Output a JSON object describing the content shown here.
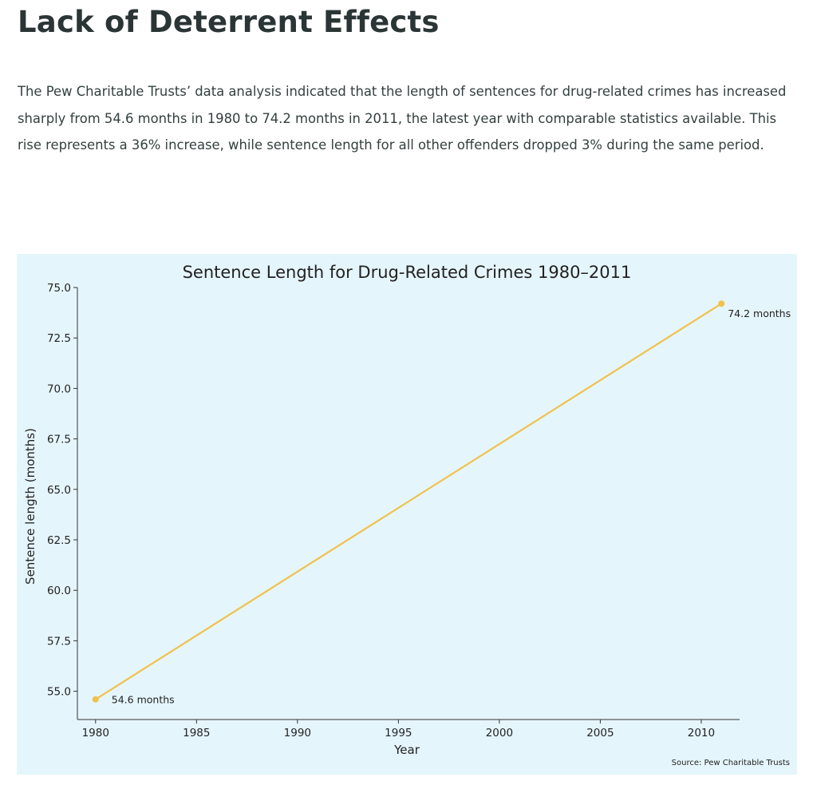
{
  "article": {
    "title": "Lack of Deterrent Effects",
    "paragraph": "The Pew Charitable Trusts’ data analysis indicated that the length of sentences for drug-related crimes has increased sharply from 54.6 months in 1980 to 74.2 months in 2011, the latest year with comparable statistics available. This rise represents a 36% increase, while sentence length for all other offenders dropped 3% during the same period."
  },
  "chart_data": {
    "type": "line",
    "title": "Sentence Length for Drug-Related Crimes 1980–2011",
    "xlabel": "Year",
    "ylabel": "Sentence length (months)",
    "x": [
      1980,
      2011
    ],
    "series": [
      {
        "values": [
          54.6,
          74.2
        ],
        "labels": [
          "54.6 months",
          "74.2 months"
        ],
        "color": "#f0c24b"
      }
    ],
    "xticks": [
      1980,
      1985,
      1990,
      1995,
      2000,
      2005,
      2010
    ],
    "yticks": [
      "55.0",
      "57.5",
      "60.0",
      "62.5",
      "65.0",
      "67.5",
      "70.0",
      "72.5",
      "75.0"
    ],
    "xlim": [
      1979.1,
      2011.9
    ],
    "ylim": [
      53.6,
      75.0
    ],
    "grid": false,
    "legend": "none",
    "background": "#e5f5fc",
    "source": "Source: Pew Charitable Trusts"
  }
}
